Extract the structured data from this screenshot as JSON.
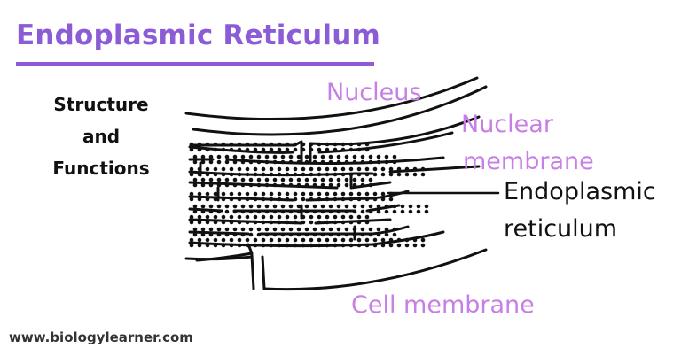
{
  "title": "Endoplasmic Reticulum",
  "subtitle": [
    "Structure",
    "and",
    "Functions"
  ],
  "labels": {
    "nucleus": "Nucleus",
    "nuclear_membrane": [
      "Nuclear",
      "membrane"
    ],
    "endoplasmic_reticulum": [
      "Endoplasmic",
      "reticulum"
    ],
    "cell_membrane": "Cell membrane"
  },
  "footer": "www.biologylearner.com",
  "colors": {
    "accent": "#8b5cd6",
    "label_purple": "#c77fe6",
    "ink": "#111111"
  }
}
